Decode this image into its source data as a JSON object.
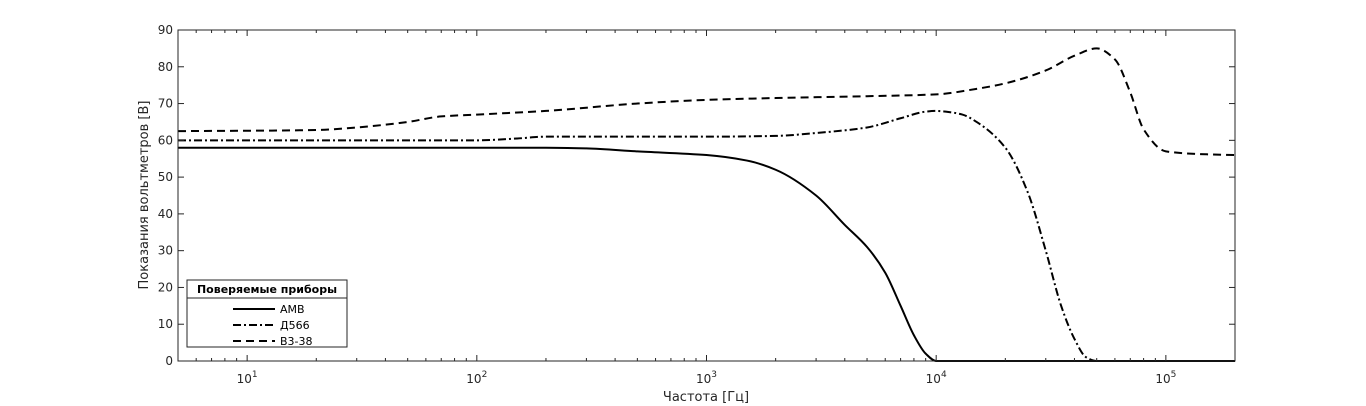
{
  "chart_data": {
    "type": "line",
    "title": "",
    "xlabel": "Частота [Гц]",
    "ylabel": "Показания вольтметров [В]",
    "xscale": "log",
    "xlim": [
      5,
      200000
    ],
    "ylim": [
      0,
      90
    ],
    "xticks": [
      {
        "value": 10,
        "base": "10",
        "exp": "1"
      },
      {
        "value": 100,
        "base": "10",
        "exp": "2"
      },
      {
        "value": 1000,
        "base": "10",
        "exp": "3"
      },
      {
        "value": 10000,
        "base": "10",
        "exp": "4"
      },
      {
        "value": 100000,
        "base": "10",
        "exp": "5"
      }
    ],
    "yticks": [
      "0",
      "10",
      "20",
      "30",
      "40",
      "50",
      "60",
      "70",
      "80",
      "90"
    ],
    "grid": false,
    "legend": {
      "title": "Поверяемые приборы",
      "placement": "bottom-left"
    },
    "series": [
      {
        "name": "АМВ",
        "style": "solid",
        "x": [
          5,
          10,
          50,
          100,
          200,
          300,
          500,
          1000,
          1500,
          2000,
          3000,
          4000,
          5000,
          6000,
          7000,
          8000,
          9000,
          10000,
          12000,
          50000,
          200000
        ],
        "y": [
          58,
          58,
          58,
          58,
          58,
          57.8,
          57,
          56,
          54.5,
          52,
          45,
          37,
          31,
          24,
          15,
          7,
          2,
          0,
          0,
          0,
          0
        ]
      },
      {
        "name": "Д566",
        "style": "dashdot",
        "x": [
          5,
          10,
          50,
          100,
          150,
          200,
          500,
          1000,
          2000,
          3000,
          5000,
          7000,
          9000,
          10000,
          11000,
          13000,
          15000,
          20000,
          25000,
          30000,
          35000,
          40000,
          45000,
          50000,
          200000
        ],
        "y": [
          60,
          60,
          60,
          60,
          60.5,
          61,
          61,
          61,
          61.2,
          62,
          63.5,
          66,
          67.8,
          68,
          67.8,
          67,
          65,
          58,
          46,
          30,
          15,
          6,
          1,
          0,
          0
        ]
      },
      {
        "name": "В3-38",
        "style": "dashed",
        "x": [
          5,
          20,
          30,
          50,
          70,
          100,
          200,
          500,
          1000,
          2000,
          5000,
          10000,
          15000,
          20000,
          30000,
          40000,
          50000,
          60000,
          70000,
          80000,
          100000,
          150000,
          200000
        ],
        "y": [
          62.5,
          62.8,
          63.5,
          65,
          66.5,
          67,
          68,
          70,
          71,
          71.5,
          72,
          72.5,
          74,
          75.5,
          79,
          83,
          85,
          82,
          73,
          63,
          57,
          56.2,
          56
        ]
      }
    ]
  }
}
